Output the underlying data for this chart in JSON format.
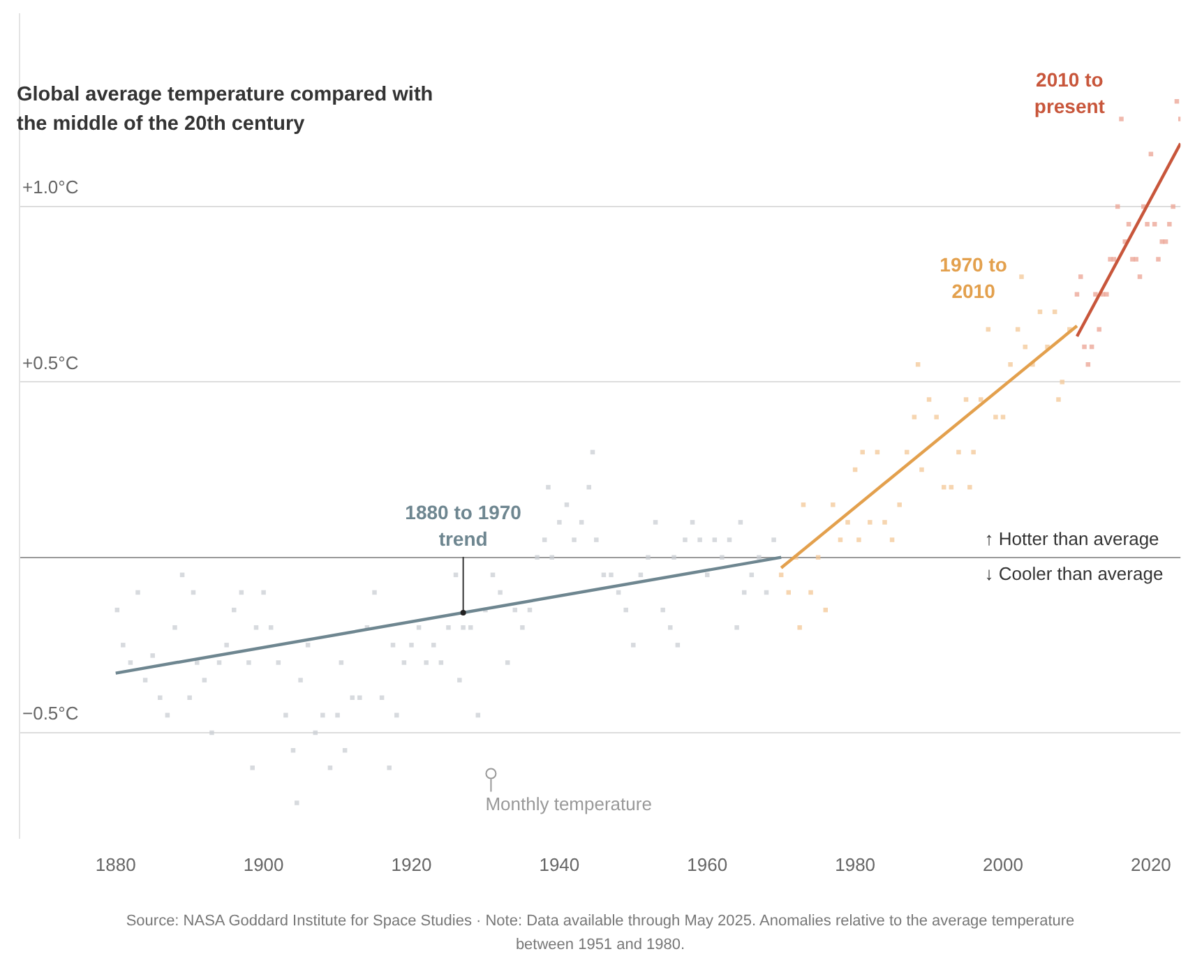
{
  "chart_data": {
    "type": "scatter",
    "title": "Global average temperature compared with the middle of the 20th century",
    "xlim": [
      1867,
      2024
    ],
    "xticks": [
      1880,
      1900,
      1920,
      1940,
      1960,
      1980,
      2000,
      2020
    ],
    "ylim": [
      -0.8,
      1.55
    ],
    "yticks": [
      {
        "value": 1.0,
        "label": "+1.0°C"
      },
      {
        "value": 0.5,
        "label": "+0.5°C"
      },
      {
        "value": 0,
        "label": null
      },
      {
        "value": -0.5,
        "label": "−0.5°C"
      }
    ],
    "grid": "y",
    "legend": false,
    "marker": "square",
    "series": [
      {
        "color": "#c9ced3",
        "x": [
          1880.2,
          1881,
          1882,
          1883,
          1884,
          1885,
          1886,
          1887,
          1888,
          1889,
          1890,
          1890.5,
          1891,
          1892,
          1893,
          1894,
          1895,
          1896,
          1897,
          1898,
          1898.5,
          1899,
          1900,
          1901,
          1902,
          1903,
          1904,
          1904.5,
          1905,
          1906,
          1907,
          1908,
          1909,
          1910,
          1910.5,
          1911,
          1912,
          1913,
          1914,
          1915,
          1916,
          1917,
          1917.5,
          1918,
          1919,
          1920,
          1921,
          1922,
          1923,
          1924,
          1925,
          1926,
          1926.5,
          1927,
          1928,
          1929,
          1930,
          1931,
          1932,
          1933,
          1934,
          1935,
          1936,
          1937,
          1938,
          1938.5,
          1939,
          1940,
          1941,
          1942,
          1943,
          1944,
          1944.5,
          1945,
          1946,
          1947,
          1948,
          1949,
          1950,
          1951,
          1952,
          1953,
          1954,
          1955,
          1955.5,
          1956,
          1957,
          1958,
          1959,
          1960,
          1961,
          1962,
          1963,
          1964,
          1964.5,
          1965,
          1966,
          1967,
          1968,
          1969
        ],
        "values": [
          -0.15,
          -0.25,
          -0.3,
          -0.1,
          -0.35,
          -0.28,
          -0.4,
          -0.45,
          -0.2,
          -0.05,
          -0.4,
          -0.1,
          -0.3,
          -0.35,
          -0.5,
          -0.3,
          -0.25,
          -0.15,
          -0.1,
          -0.3,
          -0.6,
          -0.2,
          -0.1,
          -0.2,
          -0.3,
          -0.45,
          -0.55,
          -0.7,
          -0.35,
          -0.25,
          -0.5,
          -0.45,
          -0.6,
          -0.45,
          -0.3,
          -0.55,
          -0.4,
          -0.4,
          -0.2,
          -0.1,
          -0.4,
          -0.6,
          -0.25,
          -0.45,
          -0.3,
          -0.25,
          -0.2,
          -0.3,
          -0.25,
          -0.3,
          -0.2,
          -0.05,
          -0.35,
          -0.2,
          -0.2,
          -0.45,
          -0.15,
          -0.05,
          -0.1,
          -0.3,
          -0.15,
          -0.2,
          -0.15,
          0.0,
          0.05,
          0.2,
          0.0,
          0.1,
          0.15,
          0.05,
          0.1,
          0.2,
          0.3,
          0.05,
          -0.05,
          -0.05,
          -0.1,
          -0.15,
          -0.25,
          -0.05,
          0.0,
          0.1,
          -0.15,
          -0.2,
          0.0,
          -0.25,
          0.05,
          0.1,
          0.05,
          -0.05,
          0.05,
          0.0,
          0.05,
          -0.2,
          0.1,
          -0.1,
          -0.05,
          0.0,
          -0.1,
          0.05
        ]
      },
      {
        "color": "#f3c796",
        "x": [
          1970,
          1971,
          1972,
          1972.5,
          1973,
          1974,
          1975,
          1976,
          1977,
          1978,
          1979,
          1980,
          1980.5,
          1981,
          1982,
          1983,
          1984,
          1985,
          1986,
          1987,
          1988,
          1988.5,
          1989,
          1990,
          1991,
          1992,
          1993,
          1994,
          1995,
          1995.5,
          1996,
          1997,
          1998,
          1999,
          2000,
          2001,
          2002,
          2002.5,
          2003,
          2004,
          2005,
          2006,
          2007,
          2007.5,
          2008,
          2009
        ],
        "values": [
          -0.05,
          -0.1,
          0.0,
          -0.2,
          0.15,
          -0.1,
          0.0,
          -0.15,
          0.15,
          0.05,
          0.1,
          0.25,
          0.05,
          0.3,
          0.1,
          0.3,
          0.1,
          0.05,
          0.15,
          0.3,
          0.4,
          0.55,
          0.25,
          0.45,
          0.4,
          0.2,
          0.2,
          0.3,
          0.45,
          0.2,
          0.3,
          0.45,
          0.65,
          0.4,
          0.4,
          0.55,
          0.65,
          0.8,
          0.6,
          0.55,
          0.7,
          0.6,
          0.7,
          0.45,
          0.5,
          0.65
        ]
      },
      {
        "color": "#eba292",
        "x": [
          2010,
          2010.5,
          2011,
          2011.5,
          2012,
          2012.5,
          2013,
          2013.5,
          2014,
          2014.5,
          2015,
          2015.5,
          2016,
          2016.5,
          2017,
          2017.5,
          2018,
          2018.5,
          2019,
          2019.5,
          2020,
          2020.5,
          2021,
          2021.5,
          2022,
          2022.5,
          2023,
          2023.5,
          2024
        ],
        "values": [
          0.75,
          0.8,
          0.6,
          0.55,
          0.6,
          0.75,
          0.65,
          0.75,
          0.75,
          0.85,
          0.85,
          1.0,
          1.25,
          0.9,
          0.95,
          0.85,
          0.85,
          0.8,
          1.0,
          0.95,
          1.15,
          0.95,
          0.85,
          0.9,
          0.9,
          0.95,
          1.0,
          1.3,
          1.25
        ]
      },
      {
        "type": "line",
        "marker": "none",
        "name": "1880 to 1970 trend",
        "color": "#6e8690",
        "x": [
          1880,
          1970
        ],
        "values": [
          -0.33,
          0.0
        ]
      },
      {
        "type": "line",
        "marker": "none",
        "name": "1970 to 2010",
        "color": "#e3a04d",
        "x": [
          1970,
          2010
        ],
        "values": [
          -0.03,
          0.66
        ]
      },
      {
        "type": "line",
        "marker": "none",
        "name": "2010 to present",
        "color": "#c8563b",
        "x": [
          2010,
          2024
        ],
        "values": [
          0.63,
          1.18
        ]
      }
    ],
    "annotations": [
      "↑ Hotter than average",
      "↓ Cooler than average",
      "Monthly temperature",
      "Source: NASA Goddard Institute for Space Studies · Note: Data available through May 2025. Anomalies relative to the average temperature between 1951 and 1980."
    ]
  }
}
